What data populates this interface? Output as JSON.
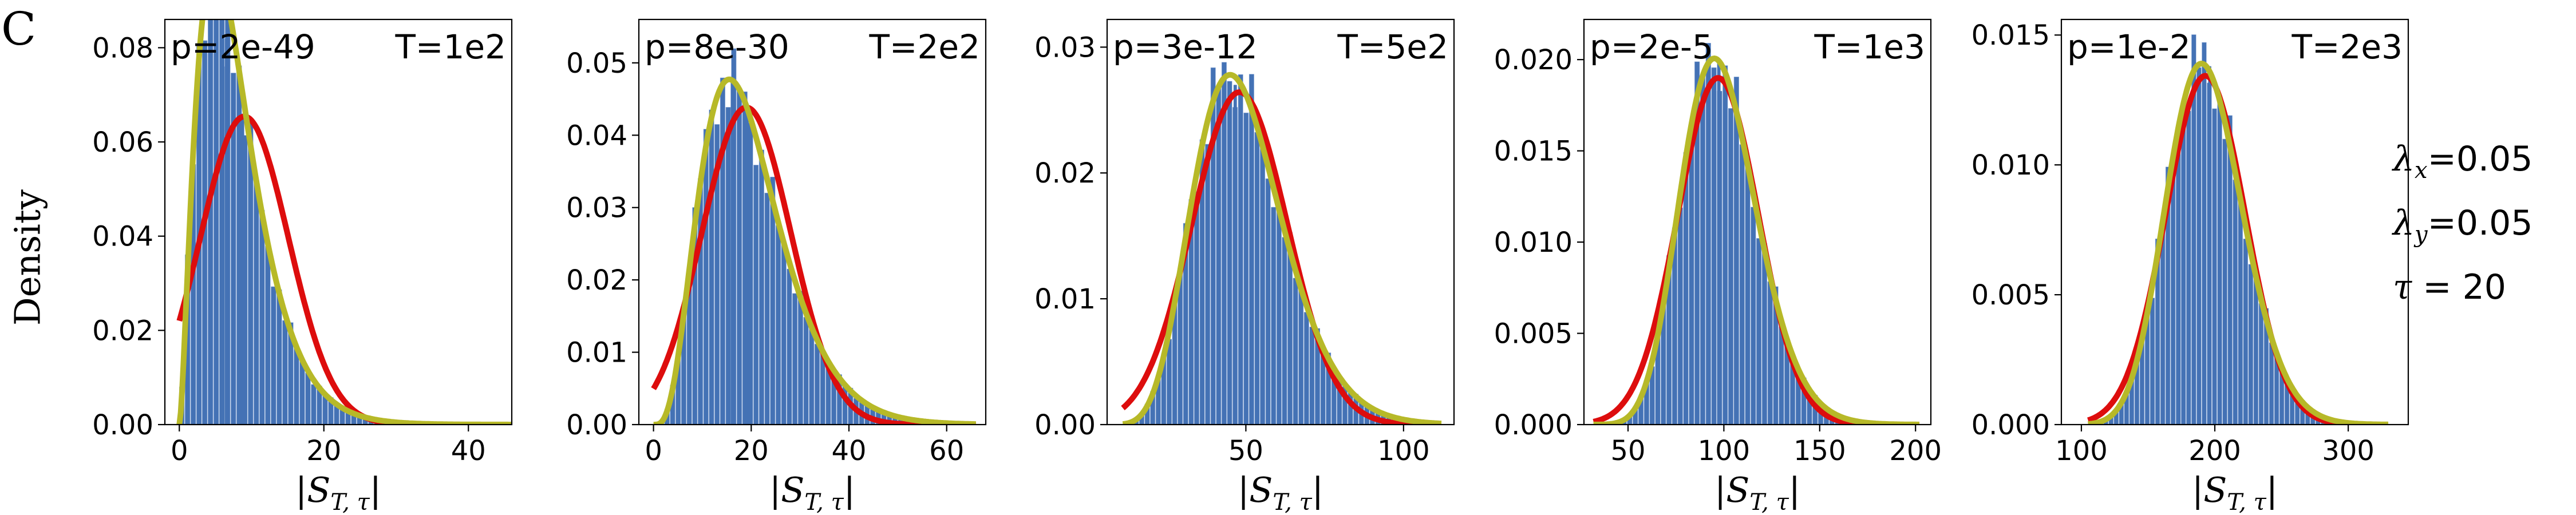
{
  "figure": {
    "panel_letter": "C",
    "ylabel": "Density",
    "xlabel": "|S_{T,τ}|",
    "params": [
      {
        "symbol": "λ",
        "sub": "x",
        "text": "=0.05"
      },
      {
        "symbol": "λ",
        "sub": "y",
        "text": "=0.05"
      },
      {
        "symbol": "τ",
        "sub": "",
        "text": " = 20"
      }
    ]
  },
  "colors": {
    "hist": "#4472b5",
    "red_fit": "#dd0d0d",
    "yellow_fit": "#b7b928"
  },
  "chart_data": [
    {
      "type": "histogram",
      "p_label": "p=2e-49",
      "T_label": "T=1e2",
      "xlim": [
        -2,
        46
      ],
      "ylim": [
        0,
        0.086
      ],
      "xticks": [
        0,
        20,
        40
      ],
      "yticks": [
        0.0,
        0.02,
        0.04,
        0.06,
        0.08
      ],
      "ytick_labels": [
        "0.00",
        "0.02",
        "0.04",
        "0.06",
        "0.08"
      ],
      "xrange": [
        0,
        46
      ],
      "red": {
        "mean": 9,
        "sd": 6.1
      },
      "yellow": {
        "mode": 4.9,
        "k": 2.6
      },
      "extra_bins": [
        [
          5.8,
          0.076
        ],
        [
          6.3,
          0.082
        ],
        [
          8.5,
          0.066
        ]
      ]
    },
    {
      "type": "histogram",
      "p_label": "p=8e-30",
      "T_label": "T=2e2",
      "xlim": [
        -3,
        68
      ],
      "ylim": [
        0,
        0.056
      ],
      "xticks": [
        0,
        20,
        40,
        60
      ],
      "yticks": [
        0.0,
        0.01,
        0.02,
        0.03,
        0.04,
        0.05
      ],
      "ytick_labels": [
        "0.00",
        "0.01",
        "0.02",
        "0.03",
        "0.04",
        "0.05"
      ],
      "xrange": [
        0,
        66
      ],
      "red": {
        "mean": 19,
        "sd": 9.1
      },
      "yellow": {
        "mode": 15.5,
        "k": 4.6
      },
      "extra_bins": [
        [
          15.8,
          0.048
        ],
        [
          18.8,
          0.044
        ]
      ]
    },
    {
      "type": "histogram",
      "p_label": "p=3e-12",
      "T_label": "T=5e2",
      "xlim": [
        6,
        116
      ],
      "ylim": [
        0,
        0.0322
      ],
      "xticks": [
        50,
        100
      ],
      "yticks": [
        0.0,
        0.01,
        0.02,
        0.03
      ],
      "ytick_labels": [
        "0.00",
        "0.01",
        "0.02",
        "0.03"
      ],
      "xrange": [
        11,
        112
      ],
      "red": {
        "mean": 48,
        "sd": 15.1
      },
      "yellow": {
        "mode": 45,
        "k": 11
      },
      "extra_bins": [
        [
          42.5,
          0.0278
        ],
        [
          46.1,
          0.027
        ]
      ]
    },
    {
      "type": "histogram",
      "p_label": "p=2e-5",
      "T_label": "T=1e3",
      "xlim": [
        27,
        208
      ],
      "ylim": [
        0,
        0.0222
      ],
      "xticks": [
        50,
        100,
        150,
        200
      ],
      "yticks": [
        0.0,
        0.005,
        0.01,
        0.015,
        0.02
      ],
      "ytick_labels": [
        "0.000",
        "0.005",
        "0.010",
        "0.015",
        "0.020"
      ],
      "xrange": [
        32,
        202
      ],
      "red": {
        "mean": 97,
        "sd": 21
      },
      "yellow": {
        "mode": 95,
        "k": 24
      },
      "extra_bins": [
        [
          96.5,
          0.0199
        ],
        [
          105.3,
          0.0178
        ]
      ]
    },
    {
      "type": "histogram",
      "p_label": "p=1e-2",
      "T_label": "T=2e3",
      "xlim": [
        85,
        345
      ],
      "ylim": [
        0,
        0.0156
      ],
      "xticks": [
        100,
        200,
        300
      ],
      "yticks": [
        0.0,
        0.005,
        0.01,
        0.015
      ],
      "ytick_labels": [
        "0.000",
        "0.005",
        "0.010",
        "0.015"
      ],
      "xrange": [
        105,
        330
      ],
      "red": {
        "mean": 193,
        "sd": 29.7
      },
      "yellow": {
        "mode": 190,
        "k": 45
      },
      "extra_bins": [
        [
          195,
          0.0138
        ],
        [
          172,
          0.0104
        ]
      ]
    }
  ]
}
